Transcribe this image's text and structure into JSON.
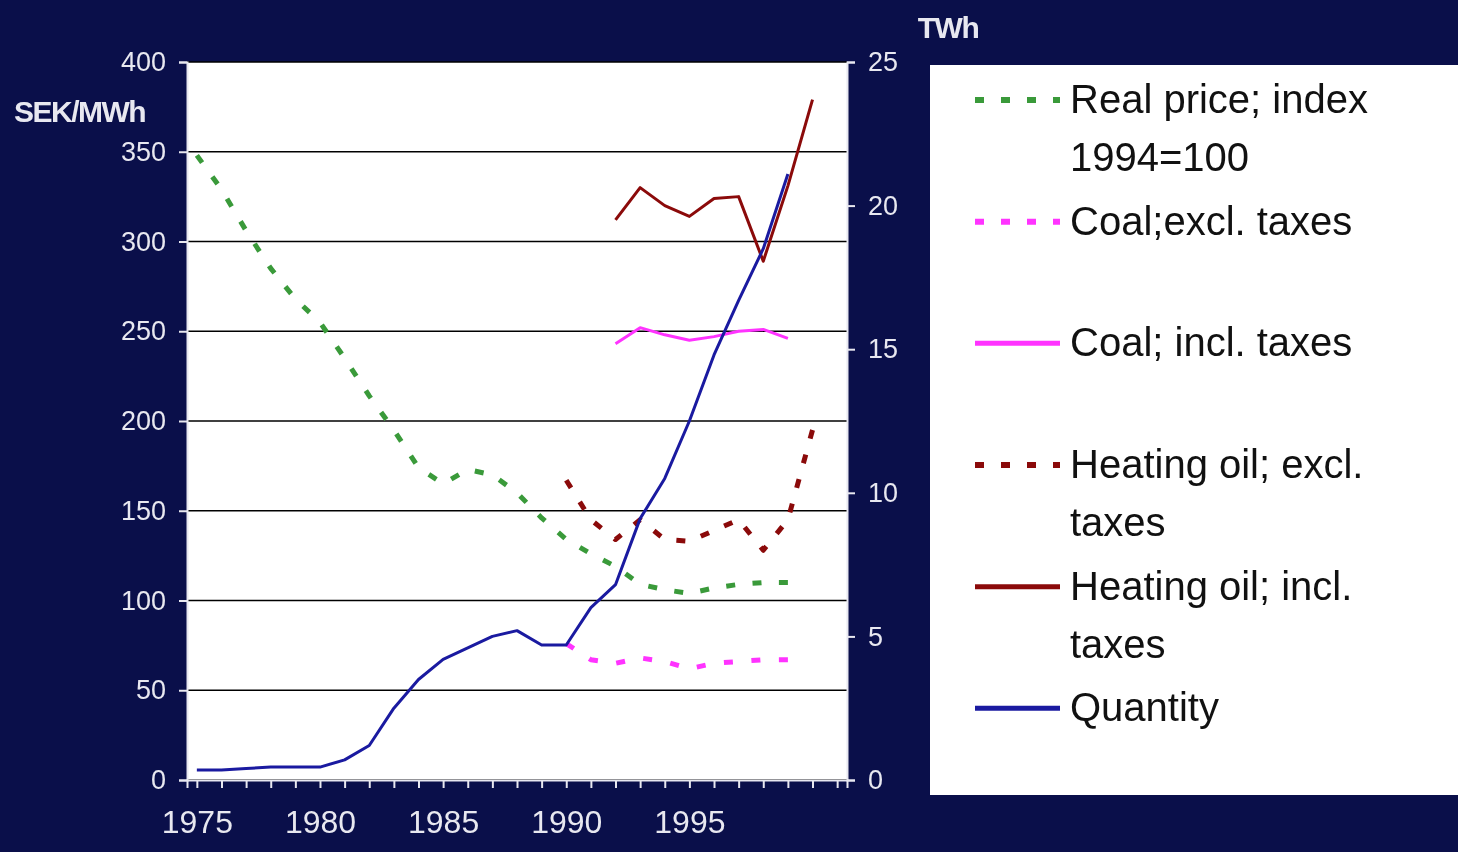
{
  "chart_data": {
    "type": "line",
    "ylabel": "SEK/MWh",
    "y2label": "TWh",
    "xlim": [
      1974.6,
      2001.4
    ],
    "xticks": [
      1975,
      {
        "value": 1976,
        "label": null
      },
      {
        "value": 1977,
        "label": null
      },
      {
        "value": 1978,
        "label": null
      },
      {
        "value": 1979,
        "label": null
      },
      1980,
      {
        "value": 1981,
        "label": null
      },
      {
        "value": 1982,
        "label": null
      },
      {
        "value": 1983,
        "label": null
      },
      {
        "value": 1984,
        "label": null
      },
      1985,
      {
        "value": 1986,
        "label": null
      },
      {
        "value": 1987,
        "label": null
      },
      {
        "value": 1988,
        "label": null
      },
      {
        "value": 1989,
        "label": null
      },
      1990,
      {
        "value": 1991,
        "label": null
      },
      {
        "value": 1992,
        "label": null
      },
      {
        "value": 1993,
        "label": null
      },
      {
        "value": 1994,
        "label": null
      },
      1995,
      {
        "value": 1996,
        "label": null
      },
      {
        "value": 1997,
        "label": null
      },
      {
        "value": 1998,
        "label": null
      },
      {
        "value": 1999,
        "label": null
      },
      {
        "value": 2000,
        "label": null
      },
      {
        "value": 2001,
        "label": null
      }
    ],
    "ylim": [
      0,
      400
    ],
    "yticks": [
      0,
      50,
      100,
      150,
      200,
      250,
      300,
      350,
      400
    ],
    "y2lim": [
      0,
      25
    ],
    "y2ticks": [
      0,
      5,
      10,
      15,
      20,
      25
    ],
    "grid": "y",
    "legend": "right",
    "marker": "none",
    "series": [
      {
        "name": "Real price; index 1994=100",
        "color": "#3a9a3a",
        "line_style": "dashed",
        "x": [
          1975,
          1976,
          1977,
          1978,
          1979,
          1980,
          1981,
          1982,
          1983,
          1984,
          1985,
          1986,
          1987,
          1988,
          1989,
          1990,
          1991,
          1992,
          1993,
          1994,
          1995,
          1996,
          1997,
          1998,
          1999
        ],
        "values": [
          348,
          329,
          306,
          285,
          268,
          255,
          235,
          214,
          195,
          174,
          165,
          173,
          170,
          160,
          146,
          134,
          126,
          119,
          109,
          106,
          104,
          107,
          109,
          110,
          110
        ]
      },
      {
        "name": "Coal;excl. taxes",
        "color": "#ff33ff",
        "line_style": "dashed",
        "x": [
          1990,
          1991,
          1992,
          1993,
          1994,
          1995,
          1996,
          1997,
          1998,
          1999
        ],
        "values": [
          76,
          67,
          65,
          68,
          66,
          62,
          65,
          66,
          67,
          67
        ]
      },
      {
        "name": "Coal; incl. taxes",
        "color": "#ff33ff",
        "line_style": "solid",
        "x": [
          1992,
          1993,
          1994,
          1995,
          1996,
          1997,
          1998,
          1999
        ],
        "values": [
          243,
          252,
          248,
          245,
          247,
          250,
          251,
          246
        ]
      },
      {
        "name": "Heating oil; excl. taxes",
        "color": "#8b0a0a",
        "line_style": "dashed",
        "x": [
          1990,
          1991,
          1992,
          1993,
          1994,
          1995,
          1996,
          1997,
          1998,
          1999,
          2000
        ],
        "values": [
          167,
          145,
          134,
          145,
          134,
          133,
          139,
          145,
          128,
          145,
          195
        ]
      },
      {
        "name": "Heating oil; incl. taxes",
        "color": "#8b0a0a",
        "line_style": "solid",
        "x": [
          1992,
          1993,
          1994,
          1995,
          1996,
          1997,
          1998,
          1999,
          2000
        ],
        "values": [
          312,
          330,
          320,
          314,
          324,
          325,
          289,
          331,
          379
        ]
      },
      {
        "name": "Quantity",
        "color": "#1a1aa0",
        "line_style": "solid",
        "axis": "y2",
        "x": [
          1975,
          1976,
          1977,
          1978,
          1979,
          1980,
          1981,
          1982,
          1983,
          1984,
          1985,
          1986,
          1987,
          1988,
          1989,
          1990,
          1991,
          1992,
          1993,
          1994,
          1995,
          1996,
          1997,
          1998,
          1999
        ],
        "values": [
          0.35,
          0.35,
          0.4,
          0.45,
          0.45,
          0.45,
          0.7,
          1.2,
          2.5,
          3.5,
          4.2,
          4.6,
          5.0,
          5.2,
          4.7,
          4.7,
          6.0,
          6.8,
          9.1,
          10.5,
          12.5,
          14.8,
          16.7,
          18.5,
          21.1
        ]
      }
    ]
  }
}
